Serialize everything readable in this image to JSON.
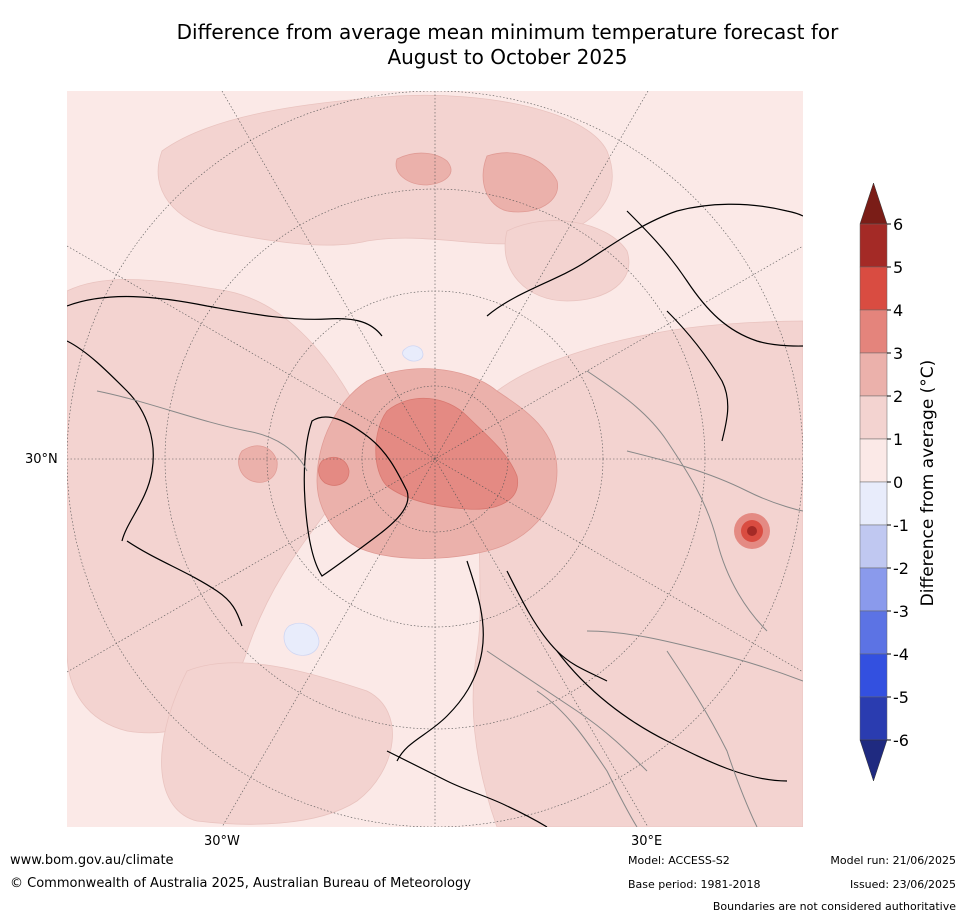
{
  "title": {
    "line1": "Difference from average mean minimum temperature forecast for",
    "line2": "August to October 2025"
  },
  "map": {
    "projection": "north-polar-stereographic",
    "lat_labels": [
      "30°N"
    ],
    "lon_labels": [
      "30°W",
      "30°E"
    ],
    "fill_colors": {
      "0to1": "#fbe9e7",
      "1to2": "#f3d3d0",
      "2to3": "#ebb1ab",
      "3to4": "#e48a83",
      "4to5": "#d94c41",
      "5to6": "#b2302b",
      "above6": "#7a1d17",
      "-1to0": "#e8ecfb"
    }
  },
  "colorbar": {
    "label": "Difference from average (°C)",
    "ticks": [
      "6",
      "5",
      "4",
      "3",
      "2",
      "1",
      "0",
      "-1",
      "-2",
      "-3",
      "-4",
      "-5",
      "-6"
    ],
    "bins": [
      {
        "range": "5 to 6",
        "color": "#a42a26"
      },
      {
        "range": "4 to 5",
        "color": "#d94c41"
      },
      {
        "range": "3 to 4",
        "color": "#e4847c"
      },
      {
        "range": "2 to 3",
        "color": "#ebb1ab"
      },
      {
        "range": "1 to 2",
        "color": "#f3d3d0"
      },
      {
        "range": "0 to 1",
        "color": "#fbe9e7"
      },
      {
        "range": "-1 to 0",
        "color": "#e8ecfb"
      },
      {
        "range": "-2 to -1",
        "color": "#c0c8f1"
      },
      {
        "range": "-3 to -2",
        "color": "#8a9aec"
      },
      {
        "range": "-4 to -3",
        "color": "#5c73e4"
      },
      {
        "range": "-5 to -4",
        "color": "#3350e0"
      },
      {
        "range": "-6 to -5",
        "color": "#2a3cb0"
      }
    ],
    "over_color": "#7a1d17",
    "under_color": "#1f2a80"
  },
  "footer": {
    "website": "www.bom.gov.au/climate",
    "copyright": "© Commonwealth of Australia 2025, Australian Bureau of Meteorology",
    "model": "Model: ACCESS-S2",
    "base_period": "Base period: 1981-2018",
    "model_run": "Model run: 21/06/2025",
    "issued": "Issued: 23/06/2025",
    "disclaimer": "Boundaries are not considered authoritative"
  }
}
